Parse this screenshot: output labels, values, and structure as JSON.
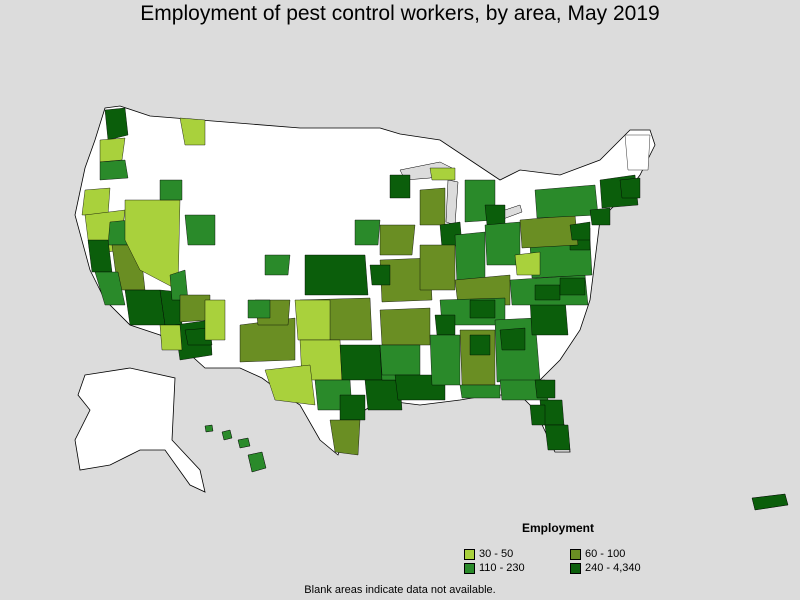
{
  "title": "Employment of pest control workers, by area, May 2019",
  "legend": {
    "title": "Employment",
    "items": [
      {
        "label": "30 - 50",
        "color": "#a9d13c"
      },
      {
        "label": "60 - 100",
        "color": "#6a8e23"
      },
      {
        "label": "110 - 230",
        "color": "#2a8a2a"
      },
      {
        "label": "240 - 4,340",
        "color": "#0b5e0b"
      }
    ]
  },
  "note": "Blank areas indicate data not available.",
  "colors": {
    "background": "#dcdcdc",
    "blank": "#ffffff",
    "border": "#000000"
  }
}
